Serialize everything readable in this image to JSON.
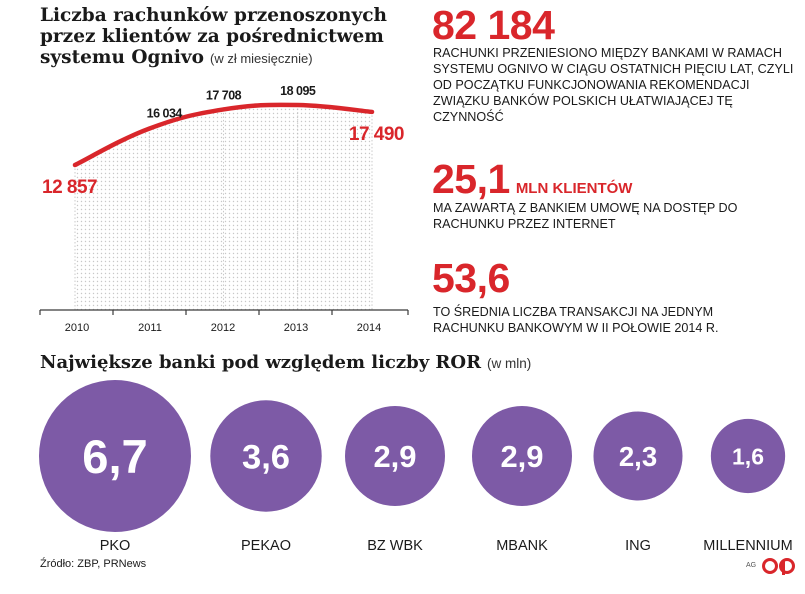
{
  "chart_title": "Liczba rachunków przenoszonych przez klientów za pośrednictwem systemu Ognivo",
  "chart_unit": "(w zł miesięcznie)",
  "stats": [
    {
      "value": "82 184",
      "unit": "",
      "text": "RACHUNKI PRZENIESIONO MIĘDZY BANKAMI W RAMACH SYSTEMU OGNIVO W CIĄGU OSTATNICH PIĘCIU LAT, CZYLI OD POCZĄTKU FUNKCJONOWANIA REKOMENDACJI ZWIĄZKU BANKÓW POLSKICH UŁATWIAJĄCEJ TĘ CZYNNOŚĆ"
    },
    {
      "value": "25,1",
      "unit": "MLN KLIENTÓW",
      "text": "MA ZAWARTĄ Z BANKIEM UMOWĘ NA DOSTĘP DO RACHUNKU PRZEZ INTERNET"
    },
    {
      "value": "53,6",
      "unit": "",
      "text": "TO ŚREDNIA LICZBA TRANSAKCJI NA JEDNYM RACHUNKU BANKOWYM W II POŁOWIE 2014 R."
    }
  ],
  "bubbles_title": "Największe banki pod względem liczby ROR",
  "bubbles_unit": "(w mln)",
  "source": "Źródło: ZBP, PRNews",
  "credit": "AG",
  "colors": {
    "red": "#d9262b",
    "purple": "#7d5aa6",
    "axis": "#3a3a3a",
    "dots": "#c8c8c8"
  },
  "chart_data": [
    {
      "type": "line",
      "x": [
        "2010",
        "2011",
        "2012",
        "2013",
        "2014"
      ],
      "series": [
        {
          "values": [
            12857,
            16034,
            17708,
            18095,
            17490
          ]
        }
      ],
      "value_labels": [
        "12 857",
        "16 034",
        "17 708",
        "18 095",
        "17 490"
      ],
      "ylim": [
        10000,
        20000
      ]
    },
    {
      "type": "bubble",
      "categories": [
        "PKO",
        "PEKAO",
        "BZ WBK",
        "MBANK",
        "ING",
        "MILLENNIUM"
      ],
      "values": [
        6.7,
        3.6,
        2.9,
        2.9,
        2.3,
        1.6
      ],
      "value_labels": [
        "6,7",
        "3,6",
        "2,9",
        "2,9",
        "2,3",
        "1,6"
      ]
    }
  ]
}
